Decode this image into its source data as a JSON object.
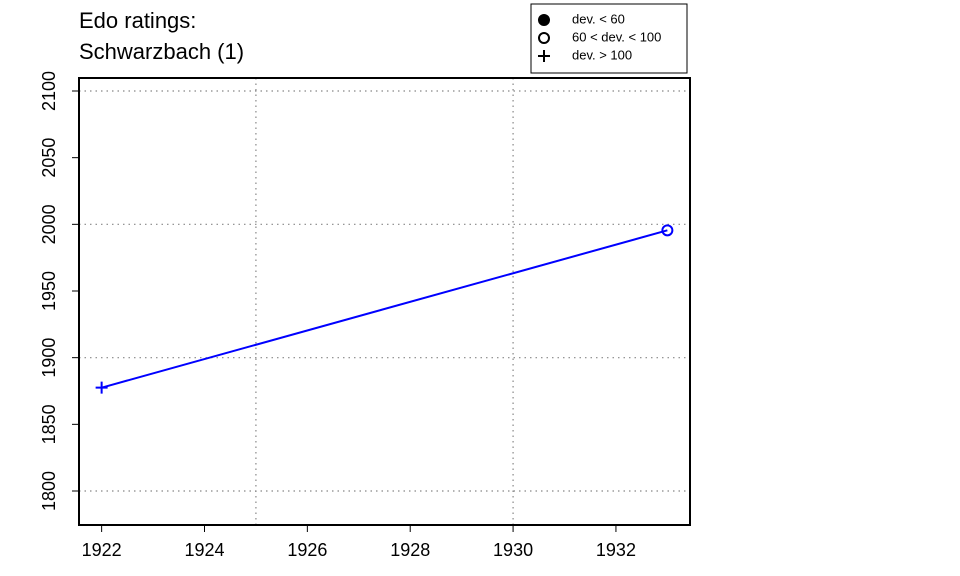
{
  "chart_data": {
    "type": "line",
    "title": [
      "Edo ratings:",
      "Schwarzbach (1)"
    ],
    "x": [
      1922,
      1933
    ],
    "series": [
      {
        "color": "#0000ff",
        "values": [
          1877.5,
          1995.5
        ],
        "markers": [
          "plus",
          "circle-open"
        ]
      }
    ],
    "xlim": [
      1921.56,
      1933.44
    ],
    "xticks": [
      1922,
      1924,
      1926,
      1928,
      1930,
      1932
    ],
    "ylim": [
      1774.5,
      2109.75
    ],
    "yticks": [
      1800,
      1850,
      1900,
      1950,
      2000,
      2050,
      2100
    ],
    "xgrid": [
      1925,
      1930
    ],
    "ygrid": [
      1800,
      1900,
      2000,
      2100
    ],
    "legend": {
      "position": "top-right",
      "entries": [
        {
          "label": "dev. < 60",
          "marker": "circle-filled"
        },
        {
          "label": "60 < dev. < 100",
          "marker": "circle-open"
        },
        {
          "label": "dev. > 100",
          "marker": "plus"
        }
      ]
    }
  }
}
